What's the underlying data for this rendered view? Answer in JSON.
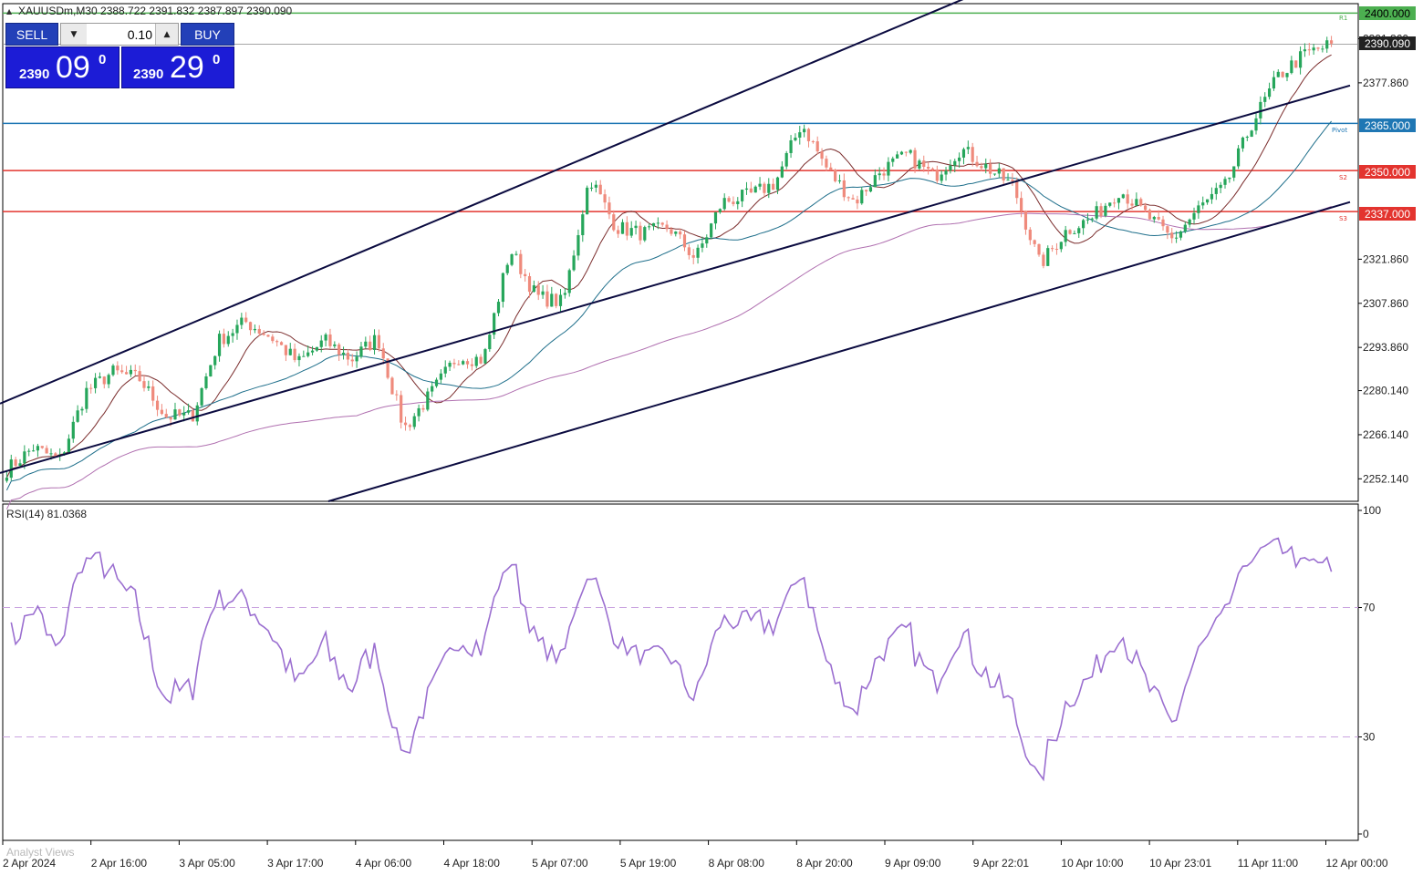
{
  "header": {
    "symbol_info": "XAUUSDm,M30  2388.722 2391.832 2387.897 2390.090"
  },
  "trade_panel": {
    "sell_label": "SELL",
    "buy_label": "BUY",
    "lot": "0.10",
    "sell_price_small": "2390",
    "sell_price_big": "09",
    "sell_price_sup": "0",
    "buy_price_small": "2390",
    "buy_price_big": "29",
    "buy_price_sup": "0"
  },
  "levels": {
    "r1_tag": "2400.000",
    "r1_label": "R1",
    "current_tag": "2390.090",
    "pivot_tag": "2365.000",
    "pivot_label": "Pivot",
    "s2_tag": "2350.000",
    "s2_label": "S2",
    "s3_tag": "2337.000",
    "s3_label": "S3"
  },
  "price_axis": {
    "ticks": [
      "2391.860",
      "2377.860",
      "2321.860",
      "2307.860",
      "2293.860",
      "2280.140",
      "2266.140",
      "2252.140"
    ]
  },
  "rsi": {
    "label": "RSI(14) 81.0368",
    "ticks": [
      "100",
      "70",
      "30",
      "0"
    ]
  },
  "time_axis": {
    "ticks": [
      "2 Apr 2024",
      "2 Apr 16:00",
      "3 Apr 05:00",
      "3 Apr 17:00",
      "4 Apr 06:00",
      "4 Apr 18:00",
      "5 Apr 07:00",
      "5 Apr 19:00",
      "8 Apr 08:00",
      "8 Apr 20:00",
      "9 Apr 09:00",
      "9 Apr 22:01",
      "10 Apr 10:00",
      "10 Apr 23:01",
      "11 Apr 11:00",
      "12 Apr 00:00"
    ]
  },
  "watermark": "Analyst Views",
  "colors": {
    "bull": "#26a65b",
    "bear": "#ef8a7c",
    "pivot": "#1f77b4",
    "support": "#e3342f",
    "resistance": "#4caf50",
    "channel": "#0b0b40",
    "rsi_line": "#9b6fd0",
    "trade_blue": "#1c1cd6"
  },
  "chart_data": {
    "type": "candlestick",
    "symbol": "XAUUSDm",
    "timeframe": "M30",
    "ylim": [
      2245,
      2403
    ],
    "rsi_ylim": [
      0,
      100
    ],
    "rsi_levels": [
      70,
      30
    ],
    "horizontal_levels": [
      {
        "name": "R1",
        "value": 2400.0
      },
      {
        "name": "Pivot",
        "value": 2365.0
      },
      {
        "name": "S2",
        "value": 2350.0
      },
      {
        "name": "S3",
        "value": 2337.0
      }
    ],
    "last_price": 2390.09,
    "rsi_last": 81.0368,
    "anchor_closes": [
      2255,
      2262,
      2258,
      2280,
      2286,
      2284,
      2272,
      2272,
      2296,
      2302,
      2297,
      2289,
      2296,
      2290,
      2297,
      2268,
      2279,
      2291,
      2290,
      2325,
      2310,
      2308,
      2348,
      2332,
      2330,
      2332,
      2322,
      2340,
      2342,
      2346,
      2365,
      2350,
      2340,
      2350,
      2355,
      2348,
      2357,
      2351,
      2345,
      2320,
      2331,
      2335,
      2344,
      2336,
      2328,
      2338,
      2345,
      2365,
      2380,
      2387,
      2390
    ]
  }
}
